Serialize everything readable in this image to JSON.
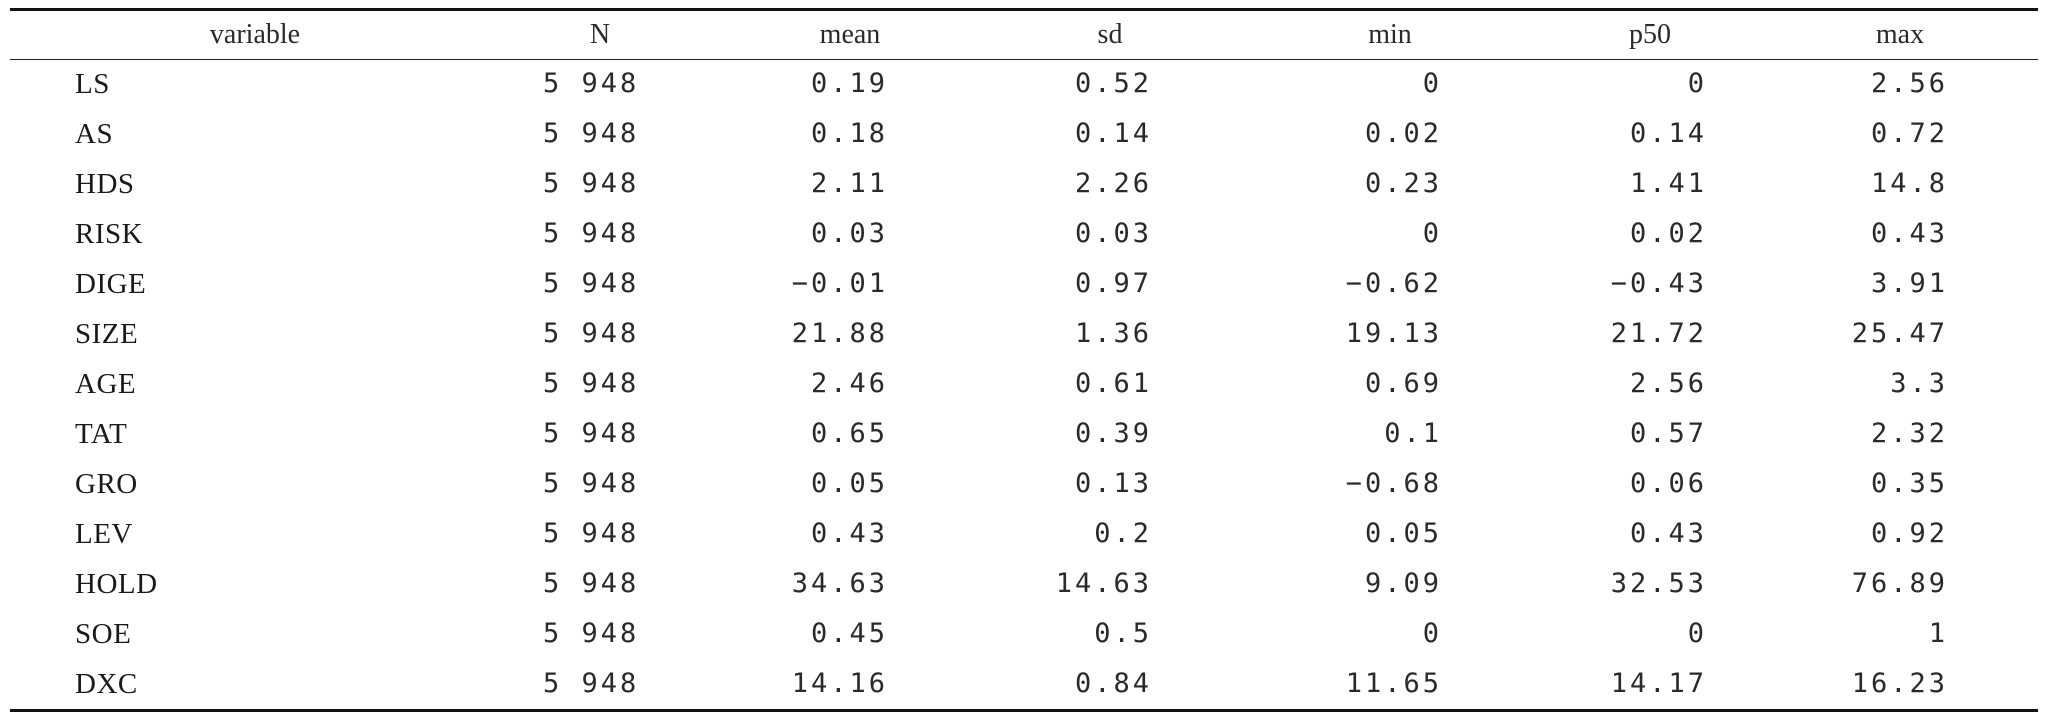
{
  "table": {
    "headers": [
      "variable",
      "N",
      "mean",
      "sd",
      "min",
      "p50",
      "max"
    ],
    "rows": [
      {
        "variable": "LS",
        "N": "5 948",
        "mean": "0.19",
        "sd": "0.52",
        "min": "0",
        "p50": "0",
        "max": "2.56"
      },
      {
        "variable": "AS",
        "N": "5 948",
        "mean": "0.18",
        "sd": "0.14",
        "min": "0.02",
        "p50": "0.14",
        "max": "0.72"
      },
      {
        "variable": "HDS",
        "N": "5 948",
        "mean": "2.11",
        "sd": "2.26",
        "min": "0.23",
        "p50": "1.41",
        "max": "14.8"
      },
      {
        "variable": "RISK",
        "N": "5 948",
        "mean": "0.03",
        "sd": "0.03",
        "min": "0",
        "p50": "0.02",
        "max": "0.43"
      },
      {
        "variable": "DIGE",
        "N": "5 948",
        "mean": "−0.01",
        "sd": "0.97",
        "min": "−0.62",
        "p50": "−0.43",
        "max": "3.91"
      },
      {
        "variable": "SIZE",
        "N": "5 948",
        "mean": "21.88",
        "sd": "1.36",
        "min": "19.13",
        "p50": "21.72",
        "max": "25.47"
      },
      {
        "variable": "AGE",
        "N": "5 948",
        "mean": "2.46",
        "sd": "0.61",
        "min": "0.69",
        "p50": "2.56",
        "max": "3.3"
      },
      {
        "variable": "TAT",
        "N": "5 948",
        "mean": "0.65",
        "sd": "0.39",
        "min": "0.1",
        "p50": "0.57",
        "max": "2.32"
      },
      {
        "variable": "GRO",
        "N": "5 948",
        "mean": "0.05",
        "sd": "0.13",
        "min": "−0.68",
        "p50": "0.06",
        "max": "0.35"
      },
      {
        "variable": "LEV",
        "N": "5 948",
        "mean": "0.43",
        "sd": "0.2",
        "min": "0.05",
        "p50": "0.43",
        "max": "0.92"
      },
      {
        "variable": "HOLD",
        "N": "5 948",
        "mean": "34.63",
        "sd": "14.63",
        "min": "9.09",
        "p50": "32.53",
        "max": "76.89"
      },
      {
        "variable": "SOE",
        "N": "5 948",
        "mean": "0.45",
        "sd": "0.5",
        "min": "0",
        "p50": "0",
        "max": "1"
      },
      {
        "variable": "DXC",
        "N": "5 948",
        "mean": "14.16",
        "sd": "0.84",
        "min": "11.65",
        "p50": "14.17",
        "max": "16.23"
      }
    ]
  }
}
